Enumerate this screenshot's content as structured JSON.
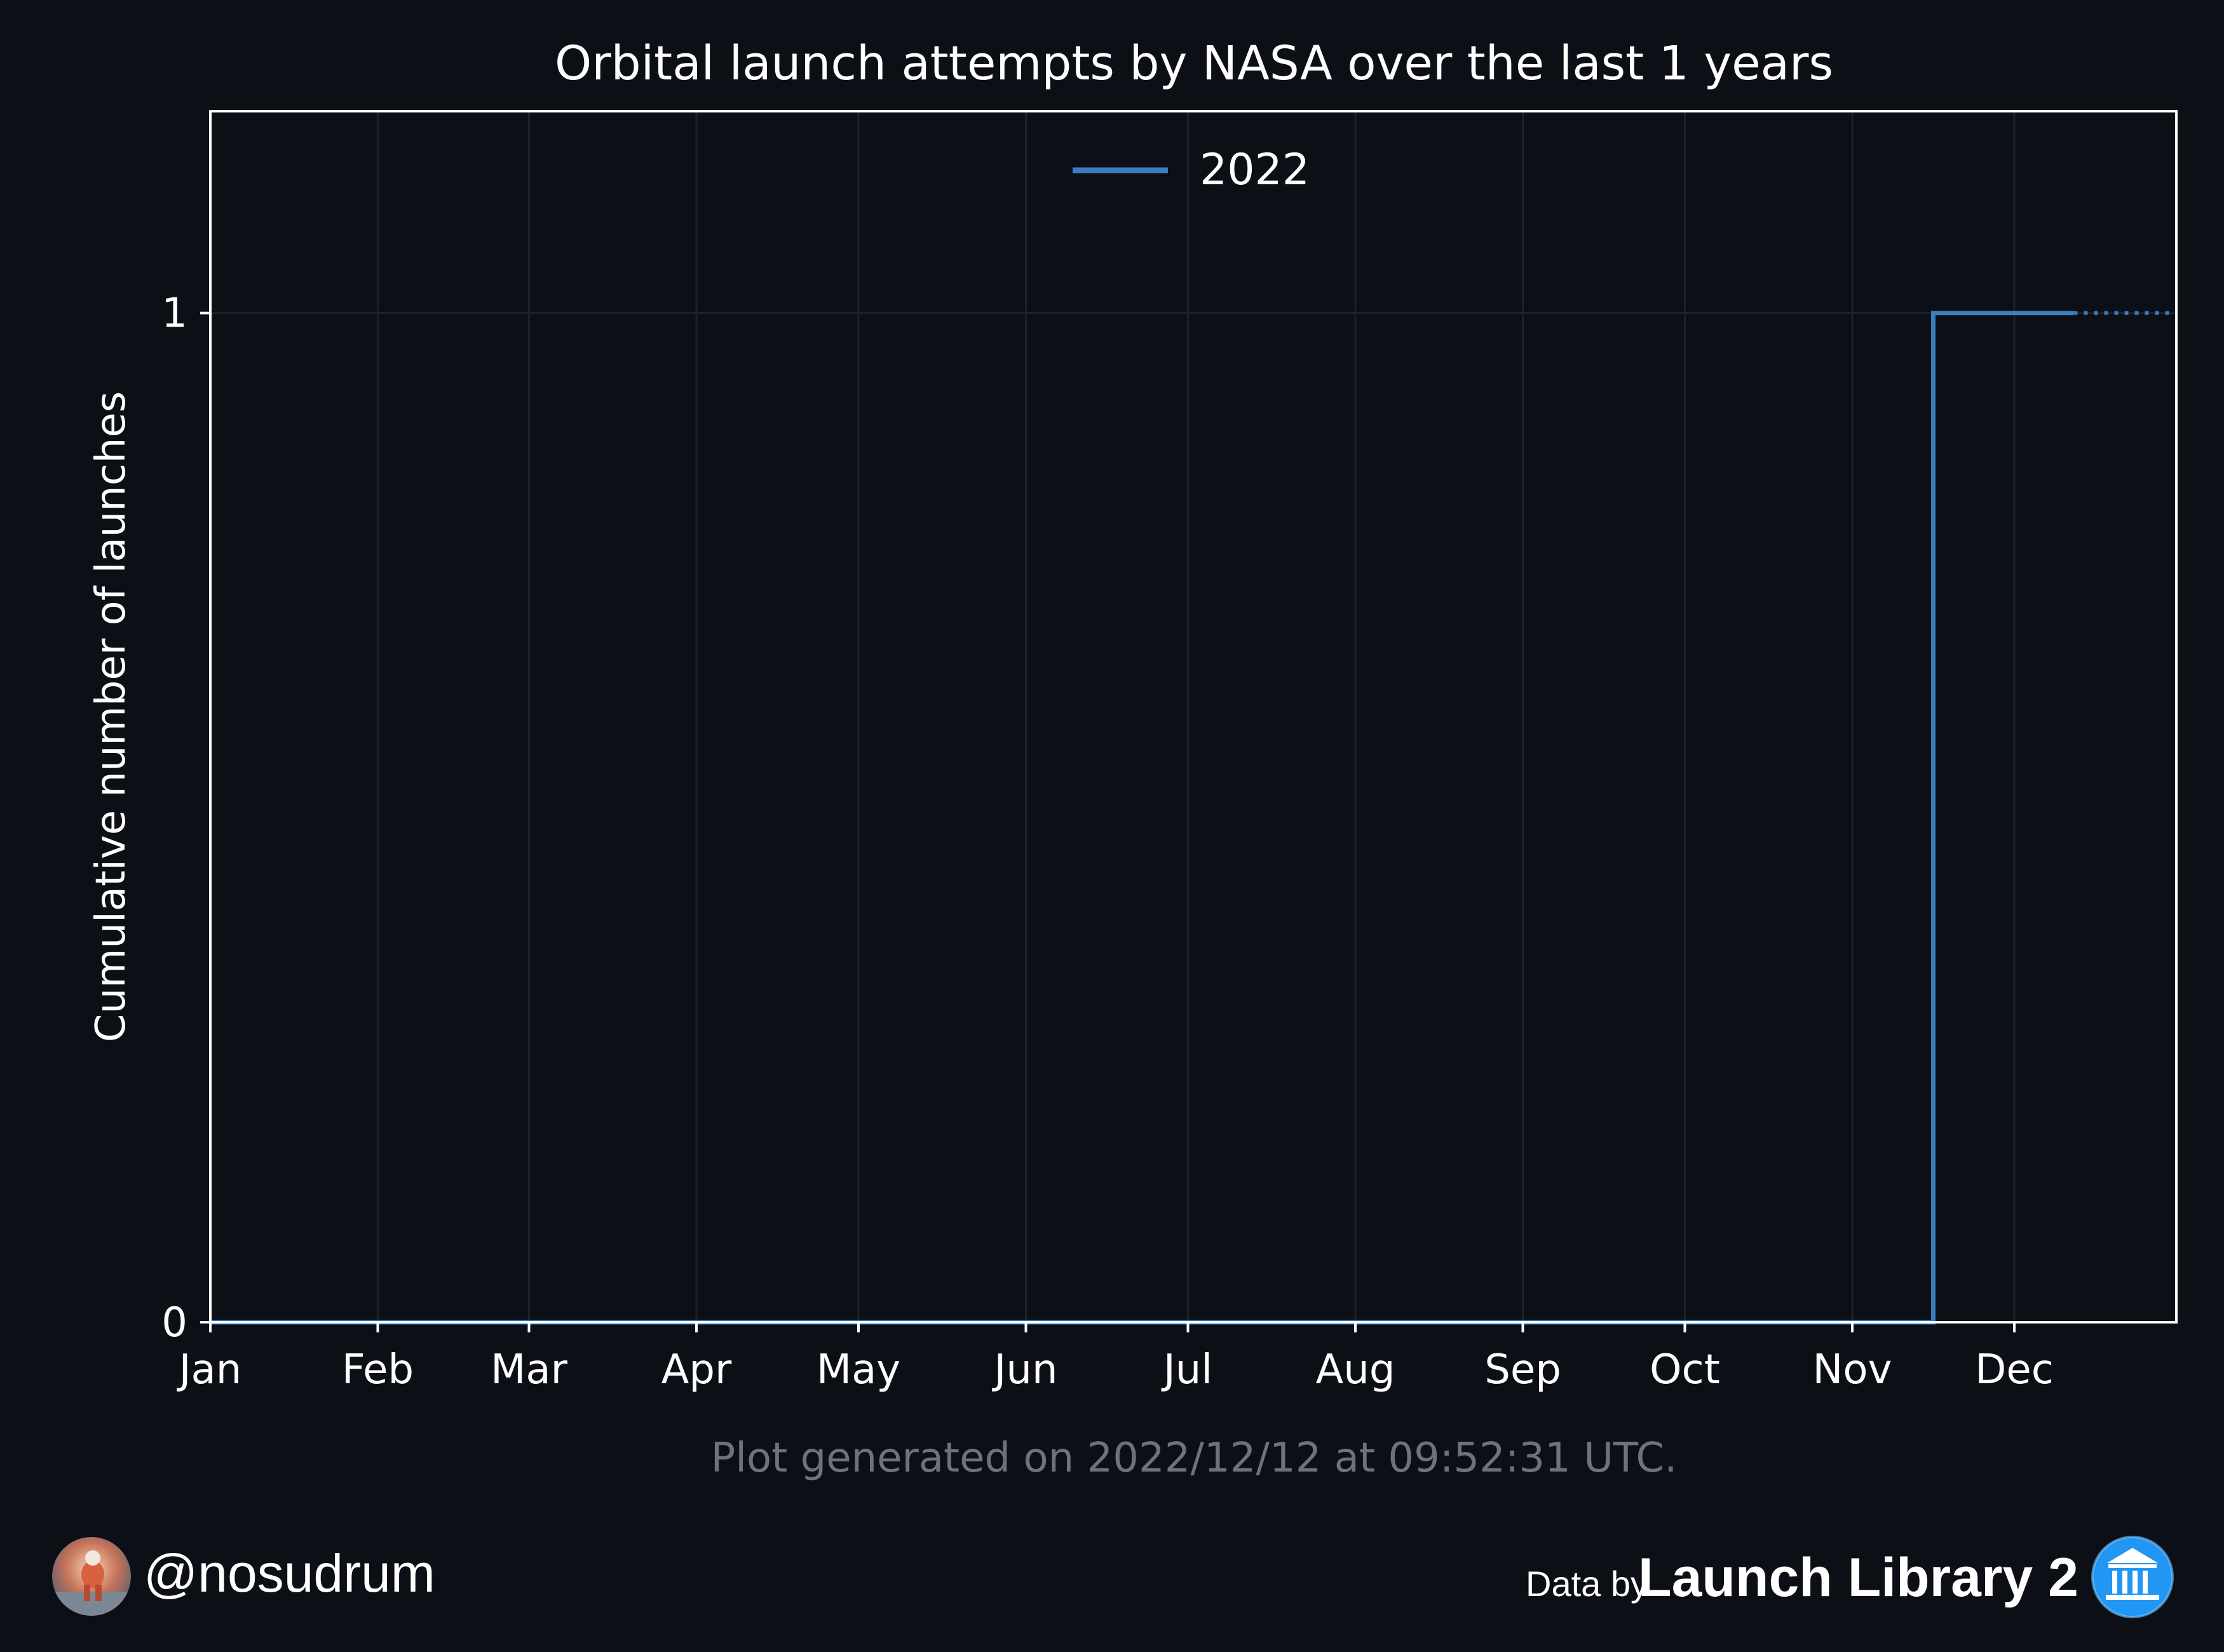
{
  "chart_data": {
    "type": "line",
    "title": "Orbital launch attempts by NASA over the last 1 years",
    "xlabel": "",
    "ylabel": "Cumulative number of launches",
    "x_tick_labels": [
      "Jan",
      "Feb",
      "Mar",
      "Apr",
      "May",
      "Jun",
      "Jul",
      "Aug",
      "Sep",
      "Oct",
      "Nov",
      "Dec"
    ],
    "x_tick_dates": [
      "2022-01-01",
      "2022-02-01",
      "2022-03-01",
      "2022-04-01",
      "2022-05-01",
      "2022-06-01",
      "2022-07-01",
      "2022-08-01",
      "2022-09-01",
      "2022-10-01",
      "2022-11-01",
      "2022-12-01"
    ],
    "xlim": [
      "2022-01-01",
      "2022-12-31"
    ],
    "y_ticks": [
      0,
      1
    ],
    "y_tick_labels": [
      "0",
      "1"
    ],
    "ylim": [
      0,
      1.2
    ],
    "grid": true,
    "legend_position": "top-center",
    "series": [
      {
        "name": "2022",
        "color": "#3a7ebf",
        "step": true,
        "x": [
          "2022-01-01",
          "2022-11-16",
          "2022-12-12"
        ],
        "y": [
          0,
          1,
          1
        ],
        "projection": {
          "x": [
            "2022-12-12",
            "2022-12-31"
          ],
          "y": [
            1,
            1
          ],
          "style": "dotted"
        }
      }
    ]
  },
  "footer": {
    "generated": "Plot generated on 2022/12/12 at 09:52:31 UTC.",
    "handle": "@nosudrum",
    "data_by": "Data by",
    "source": "Launch Library 2",
    "avatar_icon": "astronaut-avatar-icon",
    "source_icon": "launch-library-logo-icon"
  },
  "colors": {
    "background": "#0c0f16",
    "axes_background": "#0c0f16",
    "axes_frame": "#ffffff",
    "grid": "#1b202b",
    "footnote_text": "#6f7379",
    "brand_blue": "#2196f3"
  }
}
